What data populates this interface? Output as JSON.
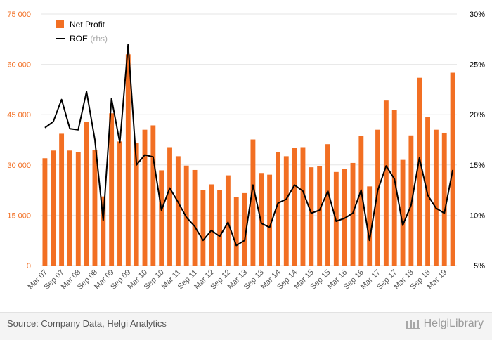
{
  "chart_data": {
    "type": "bar+line",
    "title": "",
    "x_labels_shown": [
      "Mar 07",
      "Sep 07",
      "Mar 08",
      "Sep 08",
      "Mar 09",
      "Sep 09",
      "Mar 10",
      "Sep 10",
      "Mar 11",
      "Sep 11",
      "Mar 12",
      "Sep 12",
      "Mar 13",
      "Sep 13",
      "Mar 14",
      "Sep 14",
      "Mar 15",
      "Sep 15",
      "Mar 16",
      "Sep 16",
      "Mar 17",
      "Sep 17",
      "Mar 18",
      "Sep 18",
      "Mar 19"
    ],
    "y_left": {
      "ticks": [
        "0",
        "15 000",
        "30 000",
        "45 000",
        "60 000",
        "75 000"
      ],
      "min": 0,
      "max": 75000
    },
    "y_right": {
      "ticks": [
        "5%",
        "10%",
        "15%",
        "20%",
        "25%",
        "30%"
      ],
      "min": 5,
      "max": 30
    },
    "series": [
      {
        "name": "Net Profit",
        "axis": "left",
        "kind": "bar",
        "color": "#f26f23",
        "values": [
          32000,
          34300,
          39300,
          34300,
          33800,
          42800,
          34500,
          20600,
          45400,
          37000,
          63000,
          36500,
          40500,
          41800,
          28400,
          35300,
          32600,
          29800,
          28500,
          22500,
          24200,
          22500,
          26900,
          20400,
          21600,
          37600,
          27600,
          27100,
          33800,
          32600,
          35000,
          35300,
          29300,
          29600,
          36200,
          27900,
          28800,
          30600,
          38700,
          23600,
          40500,
          49200,
          46500,
          31500,
          38800,
          56000,
          44200,
          40500,
          39600,
          57500
        ]
      },
      {
        "name": "ROE",
        "name_suffix": "(rhs)",
        "axis": "right",
        "kind": "line",
        "color": "#000000",
        "values": [
          18.7,
          19.3,
          21.5,
          18.6,
          18.5,
          22.3,
          17.5,
          9.5,
          21.6,
          17.2,
          27.0,
          15.0,
          16.0,
          15.8,
          10.5,
          12.7,
          11.3,
          9.8,
          8.9,
          7.5,
          8.5,
          7.9,
          9.3,
          7.0,
          7.5,
          13.0,
          9.2,
          8.8,
          11.2,
          11.6,
          13.0,
          12.4,
          10.2,
          10.5,
          12.4,
          9.4,
          9.7,
          10.2,
          12.5,
          7.5,
          12.5,
          14.9,
          13.6,
          9.0,
          11.0,
          15.7,
          12.0,
          10.7,
          10.2,
          14.5
        ]
      }
    ],
    "legend": {
      "position": "top-left"
    }
  },
  "footer": {
    "source": "Source: Company Data, Helgi Analytics",
    "logo_text": "HelgiLibrary"
  },
  "colors": {
    "accent": "#f26f23",
    "line": "#000000",
    "grid": "#e6e6e6"
  }
}
